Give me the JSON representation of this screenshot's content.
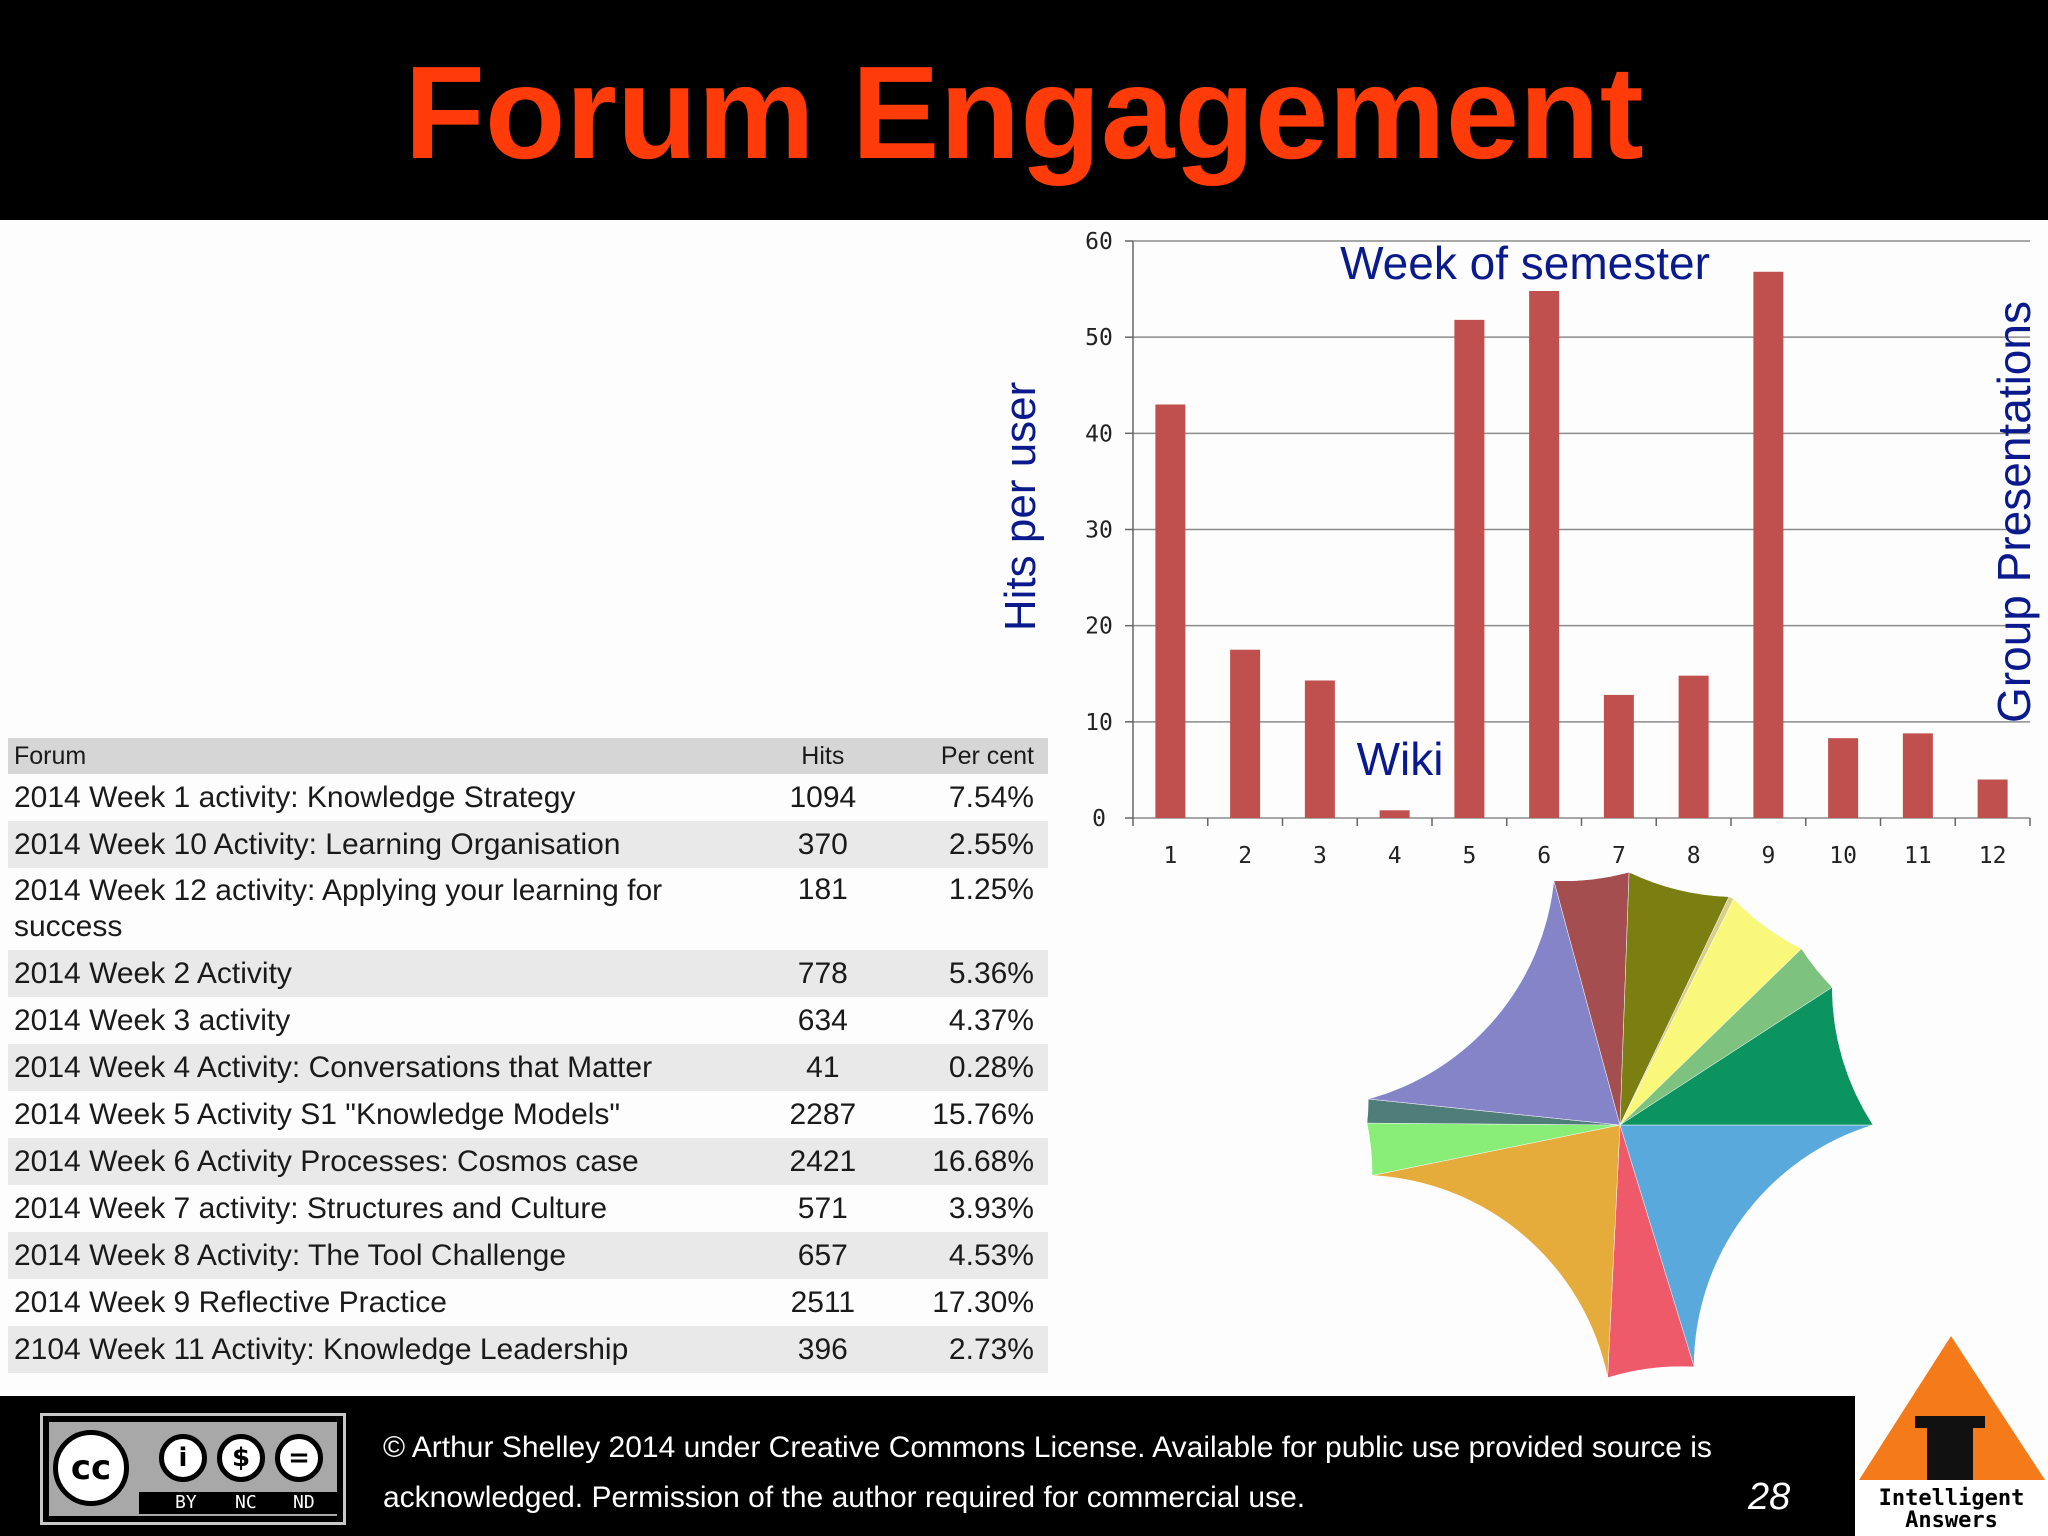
{
  "slide": {
    "title": "Forum Engagement",
    "page_number": "28"
  },
  "table": {
    "headers": [
      "Forum",
      "Hits",
      "Per cent"
    ],
    "rows": [
      {
        "forum": "2014 Week 1 activity: Knowledge Strategy",
        "hits": "1094",
        "pct": "7.54%"
      },
      {
        "forum": "2014 Week 10 Activity: Learning Organisation",
        "hits": "370",
        "pct": "2.55%"
      },
      {
        "forum": "2014 Week 12 activity: Applying your learning for success",
        "hits": "181",
        "pct": "1.25%"
      },
      {
        "forum": "2014 Week 2 Activity",
        "hits": "778",
        "pct": "5.36%"
      },
      {
        "forum": "2014 Week 3 activity",
        "hits": "634",
        "pct": "4.37%"
      },
      {
        "forum": "2014 Week 4 Activity: Conversations that Matter",
        "hits": "41",
        "pct": "0.28%"
      },
      {
        "forum": "2014 Week 5 Activity S1 \"Knowledge Models\"",
        "hits": "2287",
        "pct": "15.76%"
      },
      {
        "forum": "2014 Week 6 Activity Processes: Cosmos case",
        "hits": "2421",
        "pct": "16.68%"
      },
      {
        "forum": "2014 Week 7 activity: Structures and Culture",
        "hits": "571",
        "pct": "3.93%"
      },
      {
        "forum": "2014 Week 8 Activity: The Tool Challenge",
        "hits": "657",
        "pct": "4.53%"
      },
      {
        "forum": "2014 Week 9 Reflective Practice",
        "hits": "2511",
        "pct": "17.30%"
      },
      {
        "forum": "2104 Week 11 Activity: Knowledge Leadership",
        "hits": "396",
        "pct": "2.73%"
      }
    ]
  },
  "chart_data": [
    {
      "type": "bar",
      "categories": [
        "1",
        "2",
        "3",
        "4",
        "5",
        "6",
        "7",
        "8",
        "9",
        "10",
        "11",
        "12"
      ],
      "values": [
        43,
        17.5,
        14.3,
        0.8,
        51.8,
        54.8,
        12.8,
        14.8,
        56.8,
        8.3,
        8.8,
        4
      ],
      "ylabel": "Hits per user",
      "xlabel": "",
      "ylim": [
        0,
        60
      ],
      "yticks": [
        "0",
        "10",
        "20",
        "30",
        "40",
        "50",
        "60"
      ],
      "grid": true,
      "bar_color": "#c0504d",
      "annotations": [
        "Week of semester",
        "Wiki",
        "Group Presentations"
      ]
    },
    {
      "type": "pie",
      "values": [
        16.68,
        4.53,
        17.3,
        2.73,
        1.25,
        15.76,
        3.93,
        5.36,
        0.28,
        4.37,
        2.55,
        7.54
      ],
      "colors": [
        "#5aa9dc",
        "#ef5a6b",
        "#e5ab3b",
        "#88ee77",
        "#4e7d7a",
        "#8584c9",
        "#a54e50",
        "#7b7f12",
        "#d8d088",
        "#f9f87a",
        "#7dc27f",
        "#0b9360",
        "#1177ff"
      ]
    }
  ],
  "footer": {
    "line1": "© Arthur Shelley 2014 under Creative Commons License.  Available for public use provided source is",
    "line2": "acknowledged.  Permission of the author required for commercial use.",
    "cc_cc": "cc",
    "cc_labels": [
      "BY",
      "NC",
      "ND"
    ],
    "cc_icons": [
      "i",
      "$",
      "="
    ]
  },
  "logo": {
    "line1": "Intelligent",
    "line2": "Answers"
  }
}
